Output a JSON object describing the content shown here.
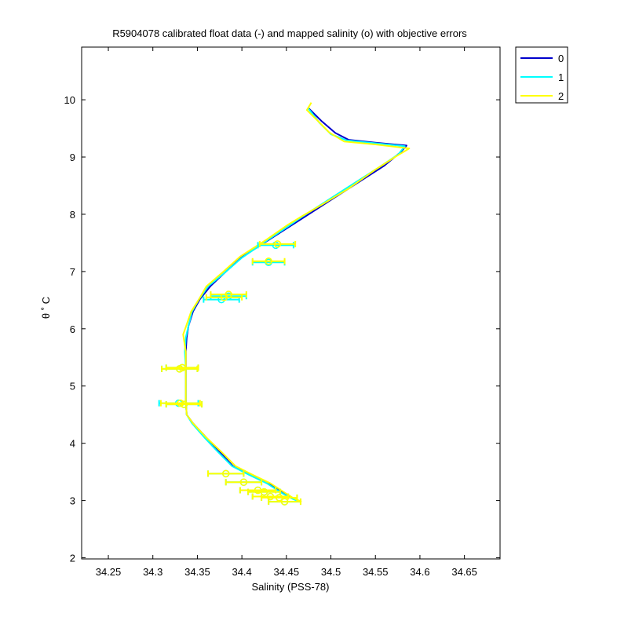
{
  "chart_data": {
    "type": "line",
    "title": "R5904078 calibrated float data (-) and mapped salinity (o) with objective errors",
    "xlabel": "Salinity (PSS-78)",
    "ylabel": "θ ˚ C",
    "xlim": [
      34.22,
      34.69
    ],
    "ylim": [
      1.98,
      10.92
    ],
    "xticks": [
      "34.25",
      "34.3",
      "34.35",
      "34.4",
      "34.45",
      "34.5",
      "34.55",
      "34.6",
      "34.65"
    ],
    "yticks": [
      "2",
      "3",
      "4",
      "5",
      "6",
      "7",
      "8",
      "9",
      "10"
    ],
    "grid": false,
    "legend_position": "outside-top-right",
    "series": [
      {
        "name": "0",
        "color": "#0000cc",
        "points": [
          [
            34.475,
            9.85
          ],
          [
            34.49,
            9.62
          ],
          [
            34.505,
            9.42
          ],
          [
            34.52,
            9.3
          ],
          [
            34.55,
            9.25
          ],
          [
            34.585,
            9.2
          ],
          [
            34.578,
            9.08
          ],
          [
            34.56,
            8.85
          ],
          [
            34.52,
            8.45
          ],
          [
            34.49,
            8.15
          ],
          [
            34.47,
            7.95
          ],
          [
            34.455,
            7.8
          ],
          [
            34.43,
            7.55
          ],
          [
            34.4,
            7.25
          ],
          [
            34.38,
            6.97
          ],
          [
            34.365,
            6.75
          ],
          [
            34.353,
            6.52
          ],
          [
            34.345,
            6.3
          ],
          [
            34.34,
            6.05
          ],
          [
            34.338,
            5.85
          ],
          [
            34.337,
            5.6
          ],
          [
            34.337,
            5.3
          ],
          [
            34.337,
            5.0
          ],
          [
            34.337,
            4.75
          ],
          [
            34.338,
            4.5
          ],
          [
            34.345,
            4.35
          ],
          [
            34.36,
            4.1
          ],
          [
            34.375,
            3.85
          ],
          [
            34.39,
            3.6
          ],
          [
            34.41,
            3.45
          ],
          [
            34.43,
            3.3
          ],
          [
            34.445,
            3.15
          ],
          [
            34.455,
            3.05
          ],
          [
            34.465,
            2.98
          ]
        ]
      },
      {
        "name": "1",
        "color": "#00ffff",
        "points": [
          [
            34.474,
            9.86
          ],
          [
            34.487,
            9.6
          ],
          [
            34.5,
            9.4
          ],
          [
            34.518,
            9.29
          ],
          [
            34.55,
            9.24
          ],
          [
            34.583,
            9.19
          ],
          [
            34.576,
            9.05
          ],
          [
            34.555,
            8.83
          ],
          [
            34.518,
            8.46
          ],
          [
            34.49,
            8.18
          ],
          [
            34.468,
            7.96
          ],
          [
            34.453,
            7.8
          ],
          [
            34.43,
            7.56
          ],
          [
            34.4,
            7.24
          ],
          [
            34.38,
            6.97
          ],
          [
            34.362,
            6.74
          ],
          [
            34.352,
            6.52
          ],
          [
            34.344,
            6.3
          ],
          [
            34.34,
            6.05
          ],
          [
            34.337,
            5.85
          ],
          [
            34.336,
            5.6
          ],
          [
            34.337,
            5.3
          ],
          [
            34.337,
            5.0
          ],
          [
            34.337,
            4.75
          ],
          [
            34.338,
            4.5
          ],
          [
            34.344,
            4.35
          ],
          [
            34.358,
            4.1
          ],
          [
            34.373,
            3.85
          ],
          [
            34.389,
            3.6
          ],
          [
            34.408,
            3.45
          ],
          [
            34.428,
            3.3
          ],
          [
            34.443,
            3.15
          ],
          [
            34.454,
            3.05
          ],
          [
            34.463,
            2.99
          ]
        ]
      },
      {
        "name": "2",
        "color": "#ffff00",
        "points": [
          [
            34.478,
            9.95
          ],
          [
            34.473,
            9.82
          ],
          [
            34.486,
            9.62
          ],
          [
            34.498,
            9.43
          ],
          [
            34.515,
            9.27
          ],
          [
            34.55,
            9.22
          ],
          [
            34.588,
            9.15
          ],
          [
            34.572,
            9.0
          ],
          [
            34.55,
            8.78
          ],
          [
            34.52,
            8.45
          ],
          [
            34.49,
            8.17
          ],
          [
            34.468,
            7.97
          ],
          [
            34.452,
            7.82
          ],
          [
            34.428,
            7.56
          ],
          [
            34.398,
            7.26
          ],
          [
            34.378,
            6.98
          ],
          [
            34.36,
            6.74
          ],
          [
            34.352,
            6.52
          ],
          [
            34.343,
            6.3
          ],
          [
            34.337,
            6.03
          ],
          [
            34.334,
            5.9
          ],
          [
            34.337,
            5.6
          ],
          [
            34.337,
            5.3
          ],
          [
            34.337,
            5.0
          ],
          [
            34.337,
            4.75
          ],
          [
            34.338,
            4.5
          ],
          [
            34.345,
            4.35
          ],
          [
            34.36,
            4.1
          ],
          [
            34.377,
            3.85
          ],
          [
            34.393,
            3.6
          ],
          [
            34.412,
            3.45
          ],
          [
            34.432,
            3.3
          ],
          [
            34.447,
            3.15
          ],
          [
            34.457,
            3.05
          ],
          [
            34.467,
            2.98
          ]
        ]
      }
    ],
    "mapped_points": [
      {
        "s": 34.44,
        "t": 7.48,
        "err": 0.02
      },
      {
        "s": 34.43,
        "t": 7.18,
        "err": 0.018
      },
      {
        "s": 34.38,
        "t": 6.55,
        "err": 0.02
      },
      {
        "s": 34.385,
        "t": 6.6,
        "err": 0.02
      },
      {
        "s": 34.33,
        "t": 5.3,
        "err": 0.02
      },
      {
        "s": 34.333,
        "t": 5.32,
        "err": 0.018
      },
      {
        "s": 34.331,
        "t": 4.7,
        "err": 0.022
      },
      {
        "s": 34.335,
        "t": 4.68,
        "err": 0.02
      },
      {
        "s": 34.382,
        "t": 3.47,
        "err": 0.02
      },
      {
        "s": 34.402,
        "t": 3.32,
        "err": 0.02
      },
      {
        "s": 34.418,
        "t": 3.18,
        "err": 0.02
      },
      {
        "s": 34.425,
        "t": 3.15,
        "err": 0.018
      },
      {
        "s": 34.432,
        "t": 3.07,
        "err": 0.02
      },
      {
        "s": 34.442,
        "t": 3.05,
        "err": 0.02
      },
      {
        "s": 34.448,
        "t": 2.98,
        "err": 0.018
      }
    ],
    "mapped_cyan_offsets": [
      [
        -0.002,
        -0.02
      ],
      [
        0.0,
        -0.02
      ],
      [
        -0.003,
        -0.04
      ],
      [
        0.0,
        -0.03
      ],
      [
        0.0,
        0.0
      ],
      [
        0.0,
        0.0
      ],
      [
        -0.002,
        0.0
      ],
      [
        0.0,
        0.0
      ],
      [
        0.0,
        0.0
      ],
      [
        0.0,
        0.0
      ],
      [
        0.0,
        0.0
      ],
      [
        0.0,
        0.0
      ],
      [
        0.0,
        0.0
      ],
      [
        0.0,
        0.0
      ],
      [
        0.0,
        0.0
      ]
    ]
  }
}
